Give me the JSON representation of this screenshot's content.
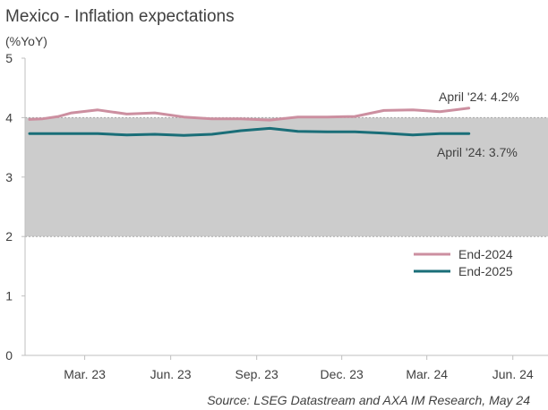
{
  "chart_data": {
    "type": "line",
    "title": "Mexico - Inflation expectations",
    "unit_label": "(%YoY)",
    "ylim": [
      0,
      5
    ],
    "yticks": [
      "0",
      "1",
      "2",
      "3",
      "4",
      "5"
    ],
    "xlim": [
      "2023-01-01",
      "2024-06-30"
    ],
    "xticks": [
      {
        "label": "Mar. 23",
        "date": "2023-03-01"
      },
      {
        "label": "Jun. 23",
        "date": "2023-06-01"
      },
      {
        "label": "Sep. 23",
        "date": "2023-09-01"
      },
      {
        "label": "Dec. 23",
        "date": "2023-12-01"
      },
      {
        "label": "Mar. 24",
        "date": "2024-03-01"
      },
      {
        "label": "Jun. 24",
        "date": "2024-06-01"
      }
    ],
    "target_band": {
      "from": 2,
      "to": 4,
      "color": "#cccccc"
    },
    "grid": false,
    "legend_position": "bottom-right",
    "series": [
      {
        "name": "End-2024",
        "color": "#cc8fa0",
        "points": [
          [
            "2023-01-01",
            3.97
          ],
          [
            "2023-01-15",
            3.98
          ],
          [
            "2023-02-01",
            4.02
          ],
          [
            "2023-02-15",
            4.08
          ],
          [
            "2023-03-15",
            4.13
          ],
          [
            "2023-04-15",
            4.06
          ],
          [
            "2023-05-15",
            4.08
          ],
          [
            "2023-06-15",
            4.01
          ],
          [
            "2023-07-15",
            3.98
          ],
          [
            "2023-08-15",
            3.98
          ],
          [
            "2023-09-15",
            3.96
          ],
          [
            "2023-10-15",
            4.01
          ],
          [
            "2023-11-15",
            4.01
          ],
          [
            "2023-12-15",
            4.02
          ],
          [
            "2024-01-15",
            4.12
          ],
          [
            "2024-02-15",
            4.13
          ],
          [
            "2024-03-15",
            4.1
          ],
          [
            "2024-04-15",
            4.16
          ]
        ]
      },
      {
        "name": "End-2025",
        "color": "#1a6e78",
        "points": [
          [
            "2023-01-01",
            3.73
          ],
          [
            "2023-02-15",
            3.73
          ],
          [
            "2023-03-15",
            3.73
          ],
          [
            "2023-04-15",
            3.71
          ],
          [
            "2023-05-15",
            3.72
          ],
          [
            "2023-06-15",
            3.7
          ],
          [
            "2023-07-15",
            3.72
          ],
          [
            "2023-08-15",
            3.78
          ],
          [
            "2023-09-15",
            3.82
          ],
          [
            "2023-10-15",
            3.77
          ],
          [
            "2023-11-15",
            3.76
          ],
          [
            "2023-12-15",
            3.76
          ],
          [
            "2024-01-15",
            3.74
          ],
          [
            "2024-02-15",
            3.71
          ],
          [
            "2024-03-15",
            3.73
          ],
          [
            "2024-04-15",
            3.73
          ]
        ]
      }
    ],
    "annotations": [
      {
        "text": "April '24: 4.2%",
        "series": "End-2024"
      },
      {
        "text": "April '24: 3.7%",
        "series": "End-2025"
      }
    ],
    "source": "Source: LSEG Datastream and AXA IM Research, May 24"
  }
}
